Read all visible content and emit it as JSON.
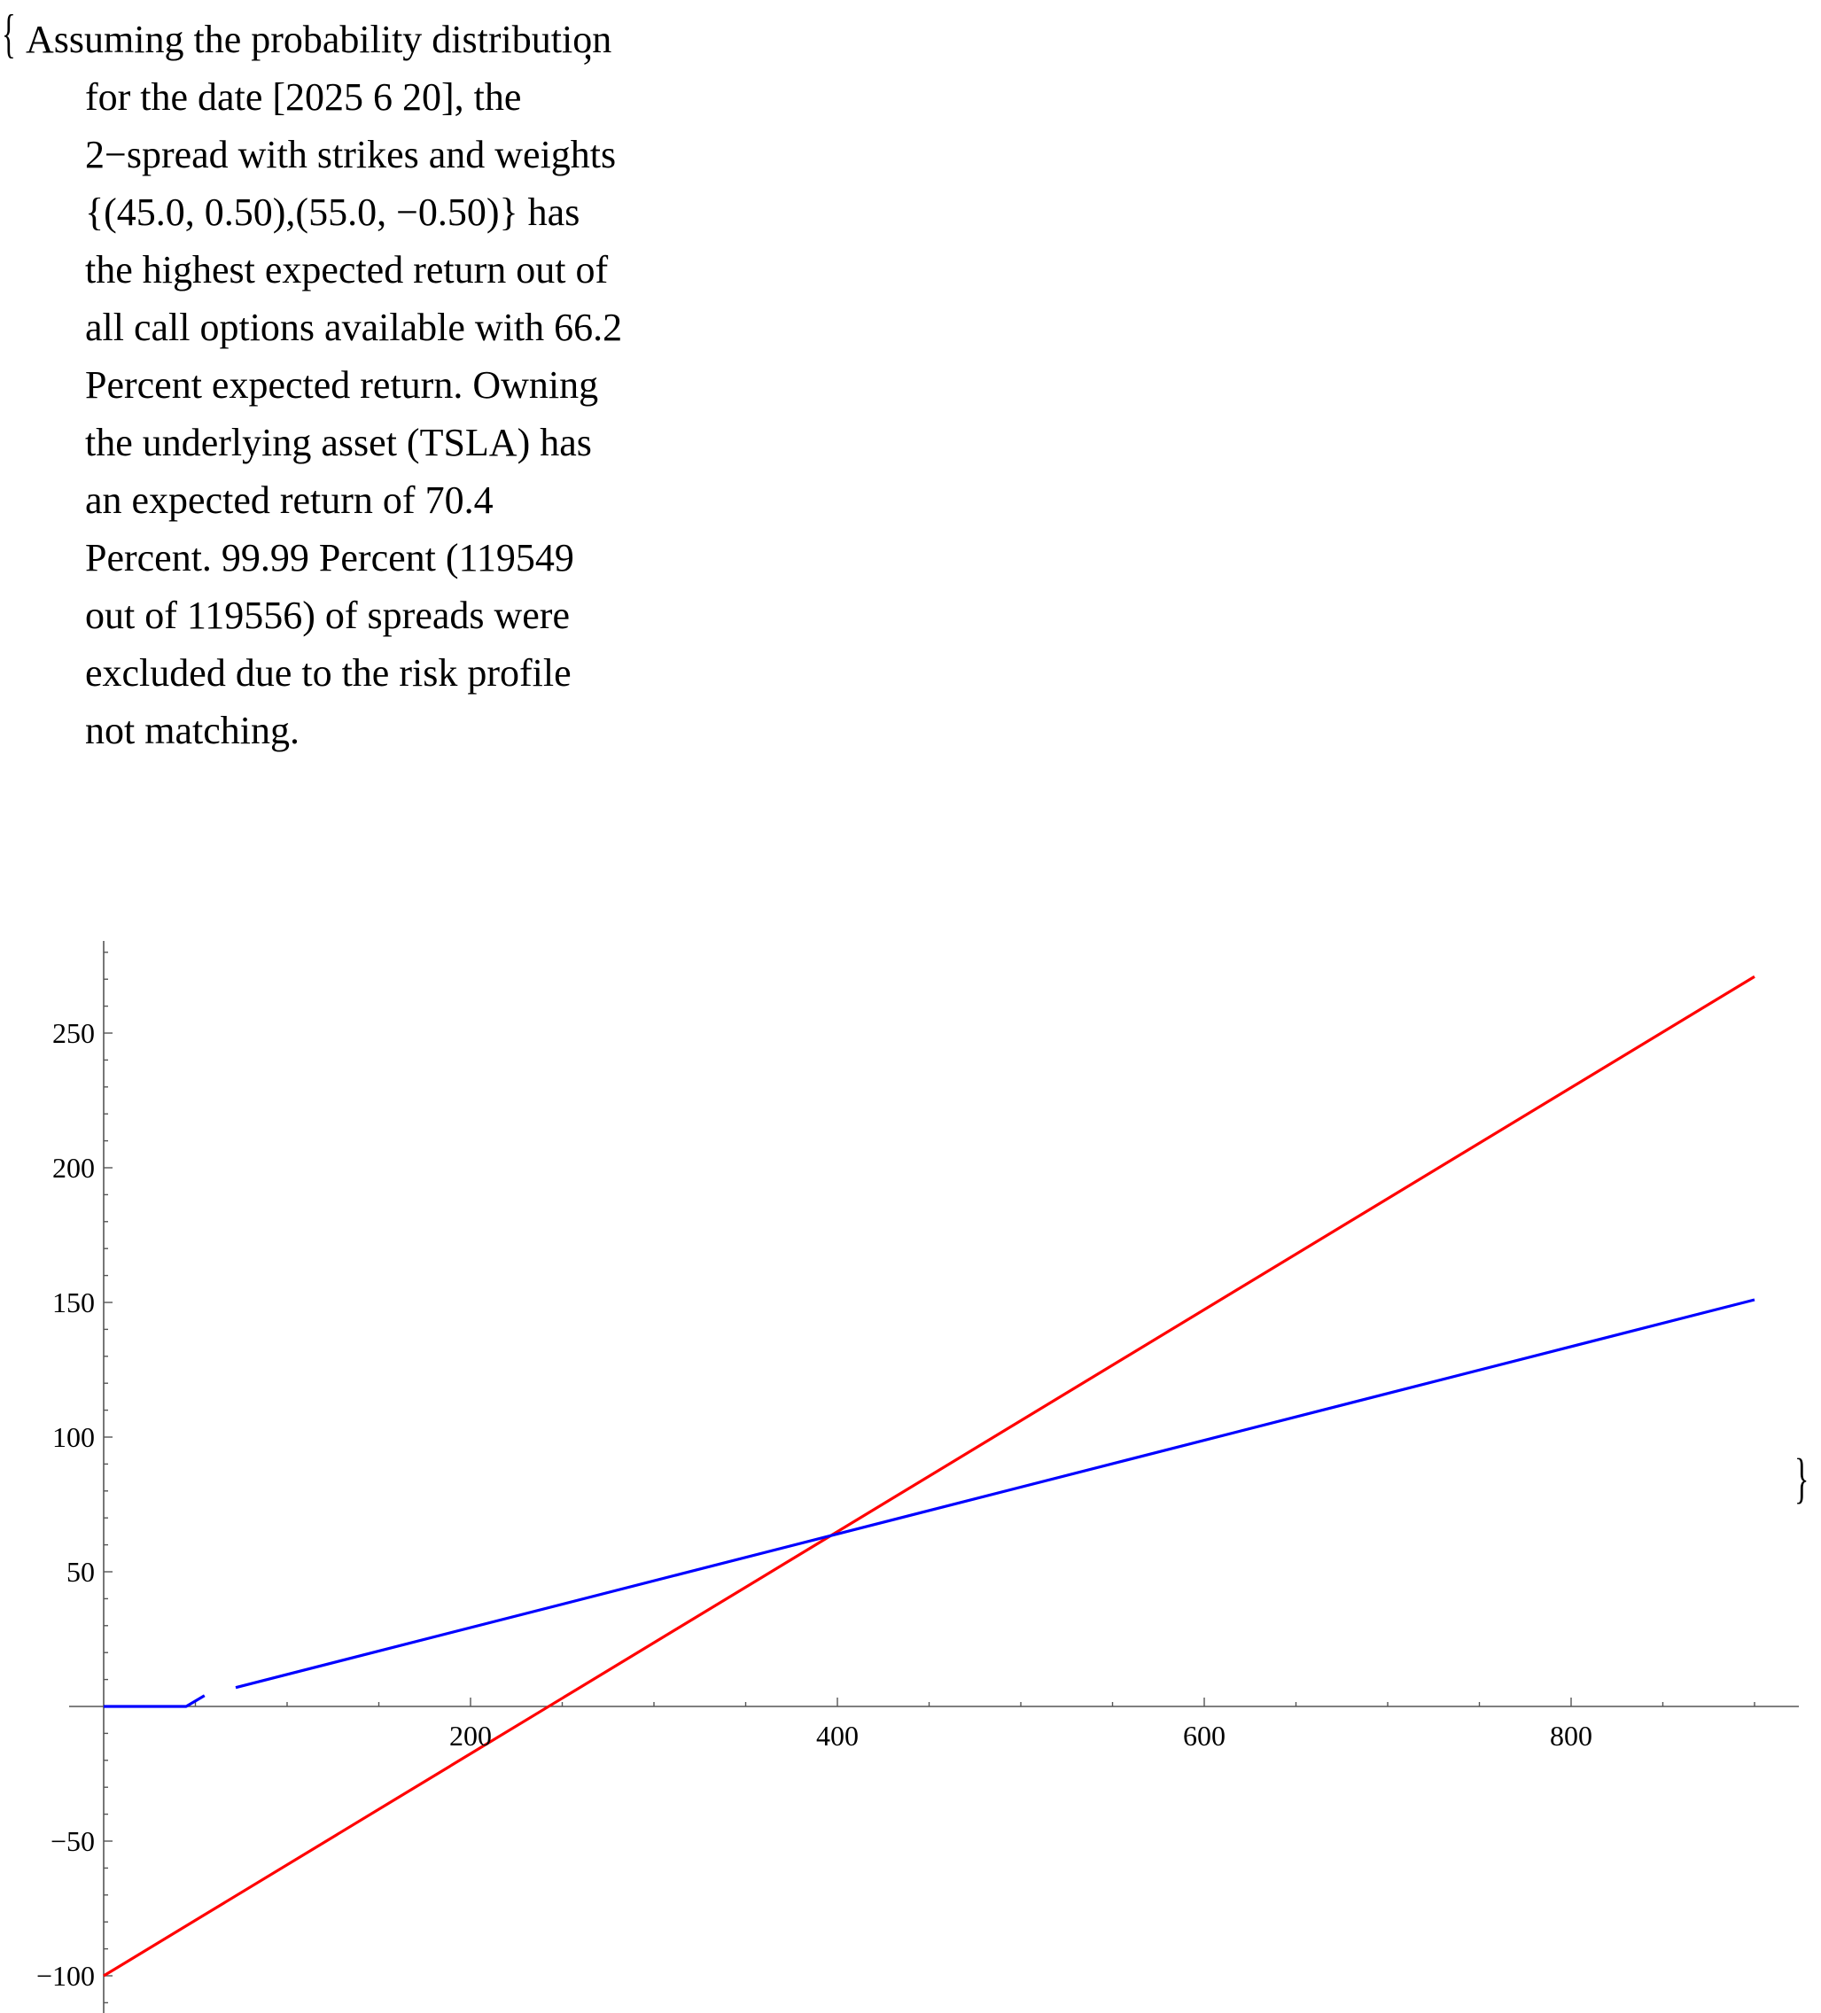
{
  "output": {
    "open_brace": "{",
    "close_brace": "}",
    "separator": ",",
    "caption": "Assuming the probability distribution for the date [2025 6 20], the 2−spread with strikes and weights {(45.0, 0.50),(55.0, −0.50)} has the highest expected return out of all call options available with 66.2 Percent expected return. Owning the underlying asset (TSLA) has an expected return of 70.4 Percent. 99.99 Percent (119549 out of 119556) of spreads were excluded due to the risk profile not matching."
  },
  "chart_data": {
    "type": "line",
    "title": "",
    "xlabel": "",
    "ylabel": "",
    "xlim": [
      0,
      920
    ],
    "ylim": [
      -112,
      283
    ],
    "x_ticks": [
      {
        "value": 200,
        "label": "200"
      },
      {
        "value": 400,
        "label": "400"
      },
      {
        "value": 600,
        "label": "600"
      },
      {
        "value": 800,
        "label": "800"
      }
    ],
    "y_ticks": [
      {
        "value": -100,
        "label": "−100"
      },
      {
        "value": -50,
        "label": "−50"
      },
      {
        "value": 50,
        "label": "50"
      },
      {
        "value": 100,
        "label": "100"
      },
      {
        "value": 150,
        "label": "150"
      },
      {
        "value": 200,
        "label": "200"
      },
      {
        "value": 250,
        "label": "250"
      }
    ],
    "x_minor_step": 50,
    "y_minor_step": 10,
    "grid": false,
    "series": [
      {
        "color": "#ff0000",
        "segments": [
          [
            [
              0,
              -100
            ],
            [
              900,
              271
            ]
          ]
        ]
      },
      {
        "color": "#0000ff",
        "segments": [
          [
            [
              0,
              0
            ],
            [
              45,
              0
            ],
            [
              55,
              4
            ]
          ],
          [
            [
              72,
              7
            ],
            [
              900,
              151
            ]
          ]
        ]
      }
    ]
  }
}
